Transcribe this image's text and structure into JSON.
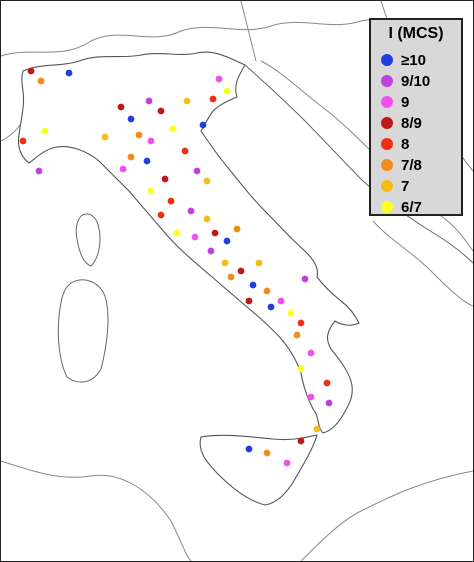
{
  "legend": {
    "title": "I (MCS)",
    "items": [
      {
        "label": "≥10",
        "color": "#1f3fe0"
      },
      {
        "label": "9/10",
        "color": "#c040e0"
      },
      {
        "label": "9",
        "color": "#f050f0"
      },
      {
        "label": "8/9",
        "color": "#c01818"
      },
      {
        "label": "8",
        "color": "#ee3010"
      },
      {
        "label": "7/8",
        "color": "#f08c18"
      },
      {
        "label": "7",
        "color": "#f4bc18"
      },
      {
        "label": "6/7",
        "color": "#ffff20"
      }
    ]
  },
  "earthquakes": [
    {
      "c": "6/7"
    },
    {
      "c": "7"
    },
    {
      "c": "7/8"
    },
    {
      "c": "8"
    },
    {
      "c": "9"
    },
    {
      "c": "8/9"
    },
    {
      "c": "7"
    },
    {
      "c": "6/7"
    },
    {
      "c": "7/8"
    },
    {
      "c": "6/7"
    }
  ]
}
